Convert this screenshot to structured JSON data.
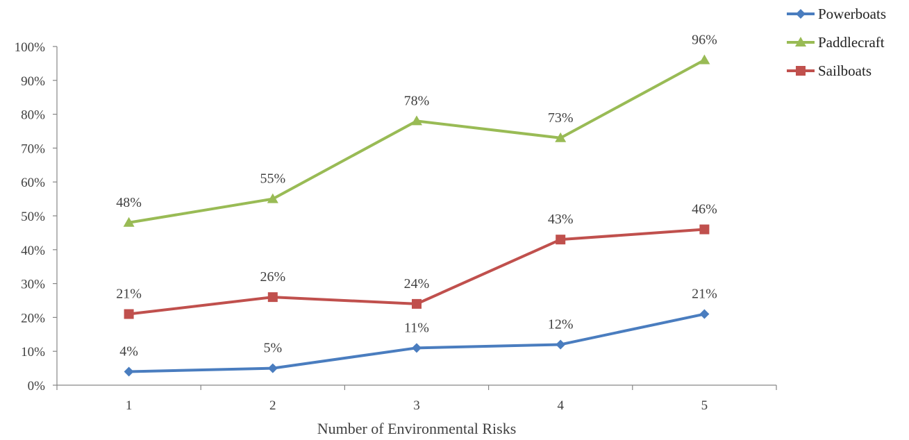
{
  "chart_data": {
    "type": "line",
    "title": "",
    "xlabel": "Number of Environmental Risks",
    "ylabel": "",
    "categories": [
      "1",
      "2",
      "3",
      "4",
      "5"
    ],
    "ylim": [
      0,
      100
    ],
    "yticks": [
      "0%",
      "10%",
      "20%",
      "30%",
      "40%",
      "50%",
      "60%",
      "70%",
      "80%",
      "90%",
      "100%"
    ],
    "grid": false,
    "legend_position": "top-right",
    "series": [
      {
        "name": "Powerboats",
        "color": "#4a7dbf",
        "marker": "diamond",
        "values": [
          4,
          5,
          11,
          12,
          21
        ],
        "labels": [
          "4%",
          "5%",
          "11%",
          "12%",
          "21%"
        ]
      },
      {
        "name": "Paddlecraft",
        "color": "#99bb55",
        "marker": "triangle",
        "values": [
          48,
          55,
          78,
          73,
          96
        ],
        "labels": [
          "48%",
          "55%",
          "78%",
          "73%",
          "96%"
        ]
      },
      {
        "name": "Sailboats",
        "color": "#c0504d",
        "marker": "square",
        "values": [
          21,
          26,
          24,
          43,
          46
        ],
        "labels": [
          "21%",
          "26%",
          "24%",
          "43%",
          "46%"
        ]
      }
    ]
  }
}
